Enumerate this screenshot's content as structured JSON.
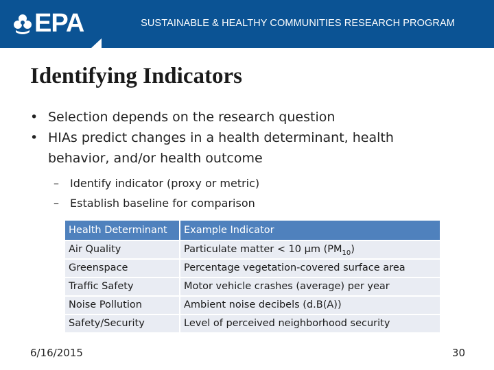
{
  "header": {
    "logo_text": "EPA",
    "banner": "SUSTAINABLE & HEALTHY COMMUNITIES RESEARCH PROGRAM",
    "brand_color": "#0b5394"
  },
  "slide": {
    "title": "Identifying Indicators",
    "bullets": [
      "Selection depends on the research question",
      "HIAs predict changes in a health determinant, health behavior, and/or health outcome"
    ],
    "sub_bullets": [
      "Identify indicator (proxy or metric)",
      "Establish baseline for comparison"
    ]
  },
  "table": {
    "headers": [
      "Health Determinant",
      "Example Indicator"
    ],
    "rows": [
      {
        "determinant": "Air Quality",
        "indicator": "Particulate matter < 10 µm (PM",
        "indicator_sub": "10",
        "indicator_tail": ")"
      },
      {
        "determinant": "Greenspace",
        "indicator": "Percentage vegetation-covered surface area"
      },
      {
        "determinant": "Traffic Safety",
        "indicator": "Motor vehicle crashes (average) per year"
      },
      {
        "determinant": "Noise Pollution",
        "indicator": "Ambient noise decibels (d.B(A))"
      },
      {
        "determinant": "Safety/Security",
        "indicator": "Level of perceived neighborhood security"
      }
    ],
    "header_color": "#4f81bd",
    "row_color": "#e9ecf3"
  },
  "footer": {
    "date": "6/16/2015",
    "page": "30"
  }
}
